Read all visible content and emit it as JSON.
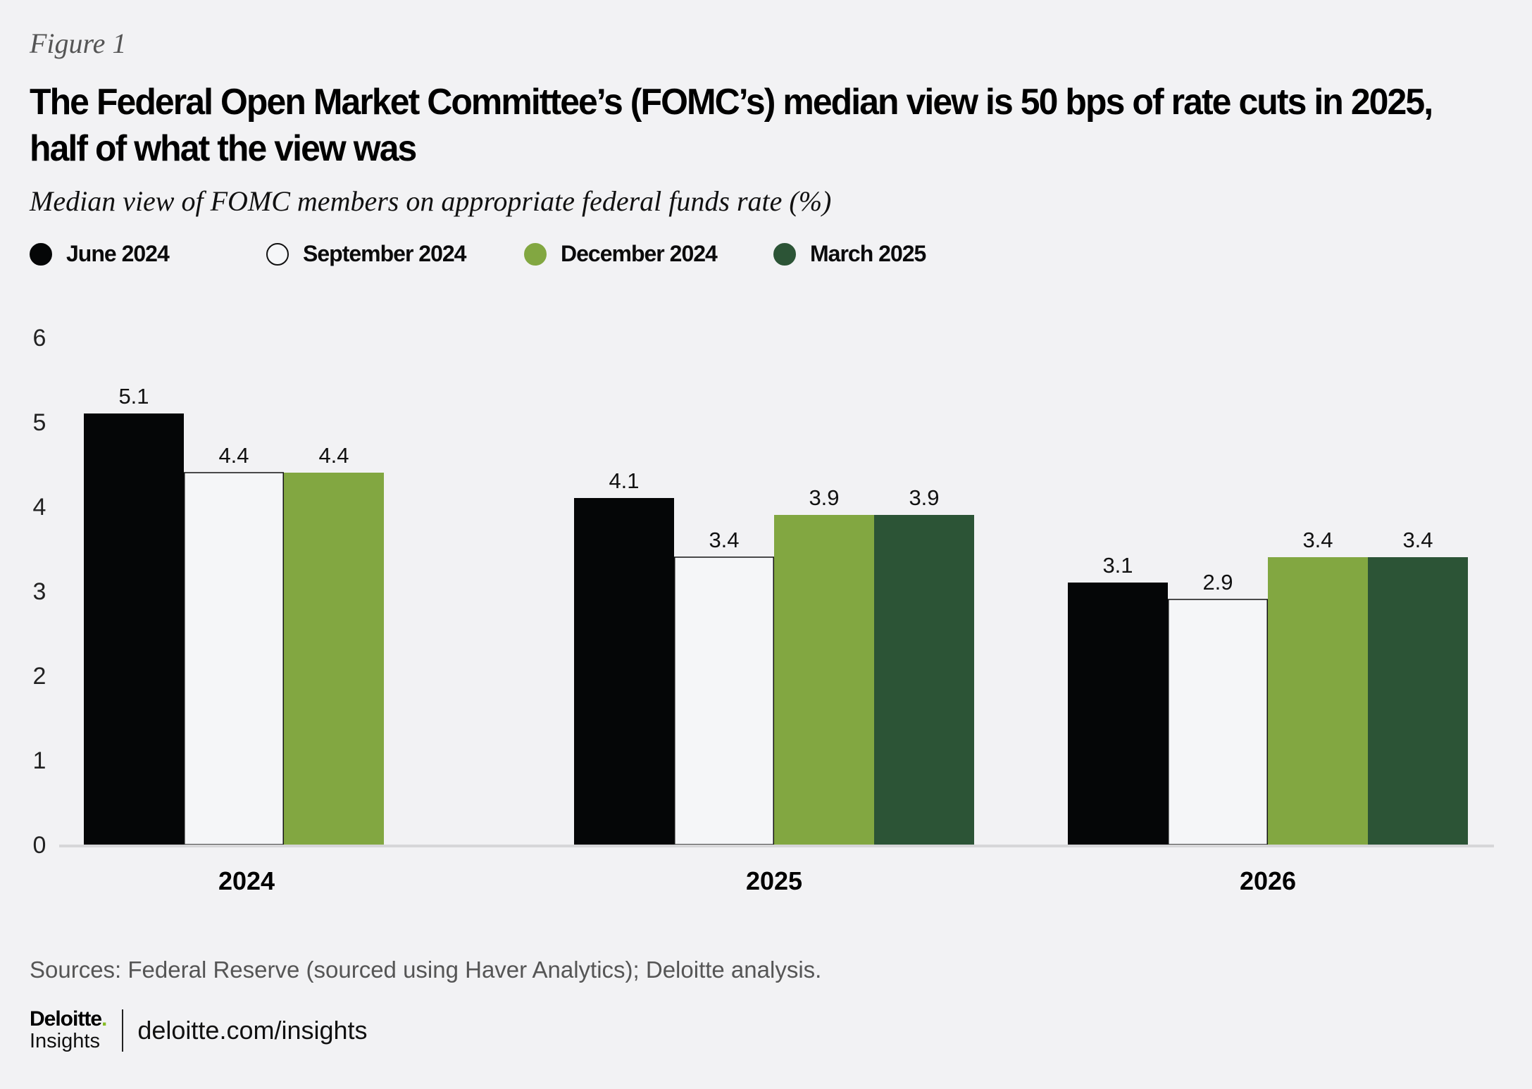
{
  "figure_label": "Figure 1",
  "title": "The Federal Open Market Committee’s (FOMC’s) median view is 50 bps of rate cuts in 2025, half of what the view was",
  "subtitle": "Median view of FOMC members on appropriate federal funds rate (%)",
  "legend": [
    {
      "label": "June 2024",
      "color": "#050607",
      "border": "#050607"
    },
    {
      "label": "September 2024",
      "color": "#f5f6f8",
      "border": "#111111"
    },
    {
      "label": "December 2024",
      "color": "#82a741",
      "border": "#82a741"
    },
    {
      "label": "March 2025",
      "color": "#2c5436",
      "border": "#2c5436"
    }
  ],
  "chart_data": {
    "type": "bar",
    "title": "The Federal Open Market Committee’s (FOMC’s) median view is 50 bps of rate cuts in 2025, half of what the view was",
    "subtitle": "Median view of FOMC members on appropriate federal funds rate (%)",
    "xlabel": "",
    "ylabel": "",
    "categories": [
      "2024",
      "2025",
      "2026"
    ],
    "series": [
      {
        "name": "June 2024",
        "color": "#050607",
        "values": [
          5.1,
          4.1,
          3.1
        ]
      },
      {
        "name": "September 2024",
        "color": "#f5f6f8",
        "values": [
          4.4,
          3.4,
          2.9
        ]
      },
      {
        "name": "December 2024",
        "color": "#82a741",
        "values": [
          4.4,
          3.9,
          3.4
        ]
      },
      {
        "name": "March 2025",
        "color": "#2c5436",
        "values": [
          null,
          3.9,
          3.4
        ]
      }
    ],
    "yticks": [
      0,
      1,
      2,
      3,
      4,
      5,
      6
    ],
    "ylim": [
      0,
      6
    ],
    "grid": false,
    "legend_position": "top-left",
    "data_labels": true
  },
  "source": "Sources: Federal Reserve (sourced using Haver Analytics); Deloitte analysis.",
  "footer": {
    "brand": "Deloitte",
    "brand_dot": ".",
    "brand_sub": "Insights",
    "url": "deloitte.com/insights"
  }
}
